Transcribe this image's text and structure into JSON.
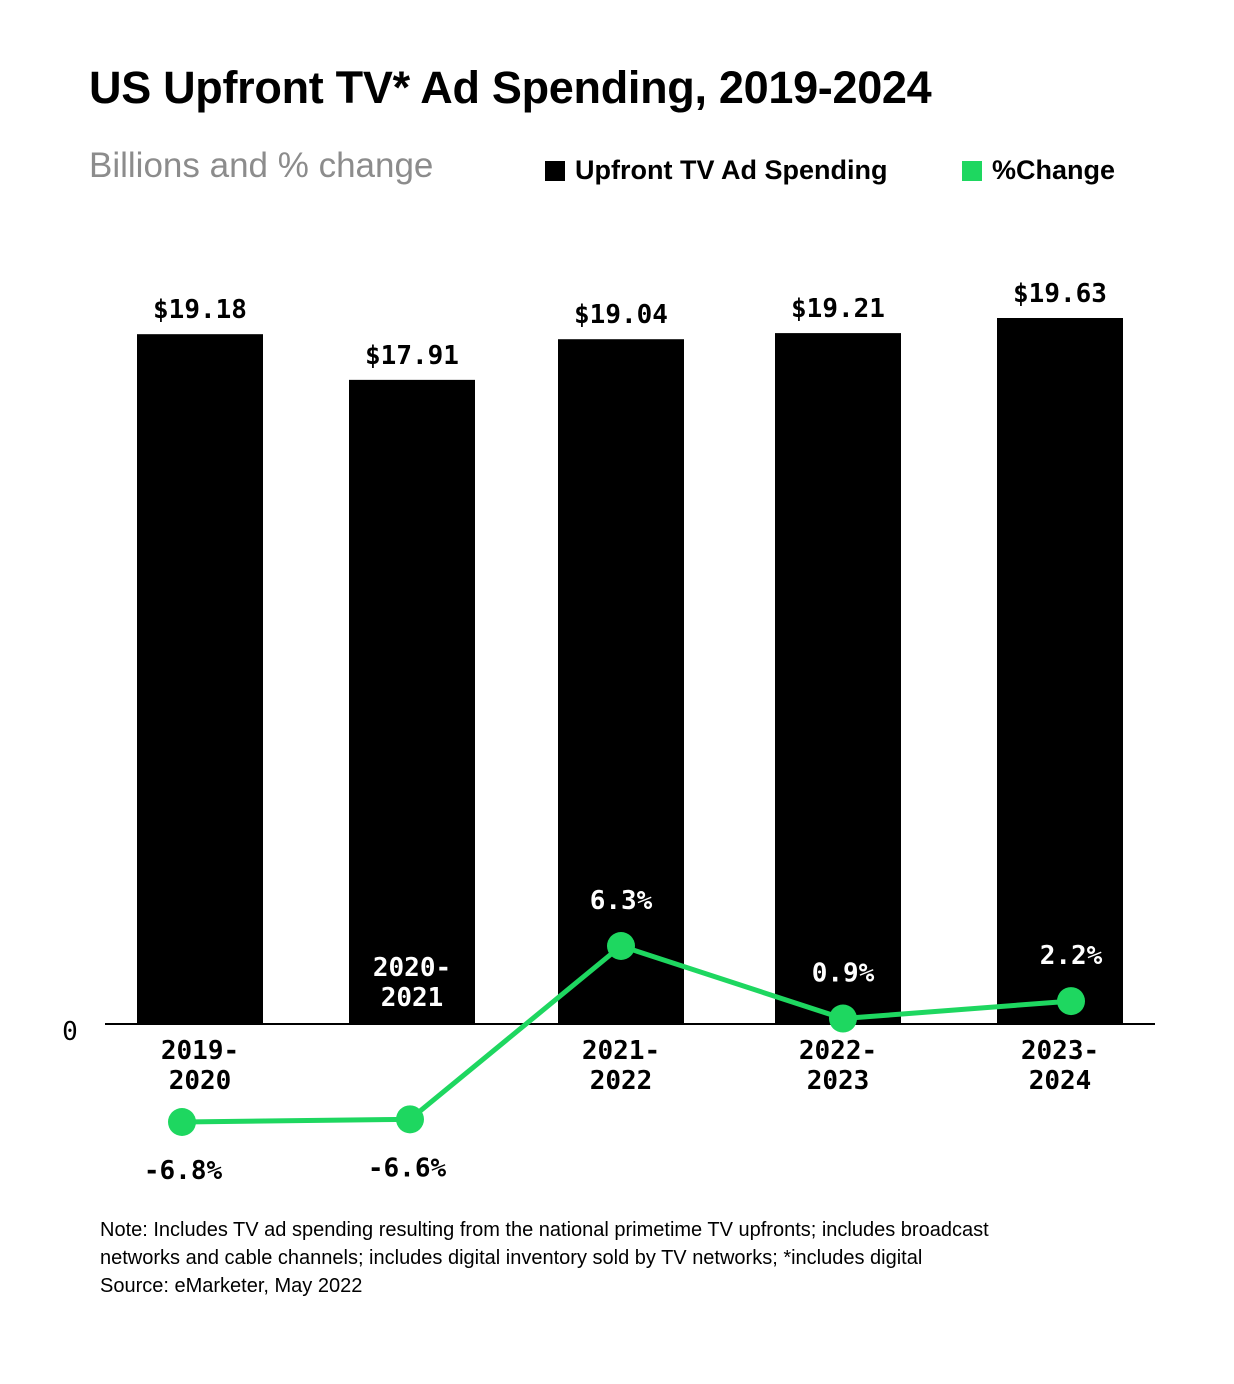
{
  "title": "US Upfront TV* Ad Spending, 2019-2024",
  "subtitle": "Billions and % change",
  "legend": {
    "bars_label": "Upfront TV Ad Spending",
    "line_label": "%Change"
  },
  "colors": {
    "bar": "#000000",
    "line": "#1ed760",
    "axis": "#000000",
    "subtitle": "#8c8c8c"
  },
  "chart_data": {
    "type": "bar",
    "title": "US Upfront TV* Ad Spending, 2019-2024",
    "subtitle": "Billions and % change",
    "categories": [
      "2019-\n2020",
      "2020-\n2021",
      "2021-\n2022",
      "2022-\n2023",
      "2023-\n2024"
    ],
    "series": [
      {
        "name": "Upfront TV Ad Spending",
        "type": "bar",
        "values": [
          19.18,
          17.91,
          19.04,
          19.21,
          19.63
        ],
        "labels": [
          "$19.18",
          "$17.91",
          "$19.04",
          "$19.21",
          "$19.63"
        ]
      },
      {
        "name": "%Change",
        "type": "line",
        "values": [
          -6.8,
          -6.6,
          6.3,
          0.9,
          2.2
        ],
        "labels": [
          "-6.8%",
          "-6.6%",
          "6.3%",
          "0.9%",
          "2.2%"
        ]
      }
    ],
    "zero_label": "0",
    "xlabel": "",
    "ylabel": "",
    "legend_position": "top-right",
    "grid": false
  },
  "note": {
    "line1": "Note: Includes TV ad spending resulting from the national primetime TV upfronts; includes broadcast",
    "line2": "networks and cable channels; includes digital inventory sold by TV networks; *includes digital",
    "source": "Source: eMarketer, May 2022"
  }
}
